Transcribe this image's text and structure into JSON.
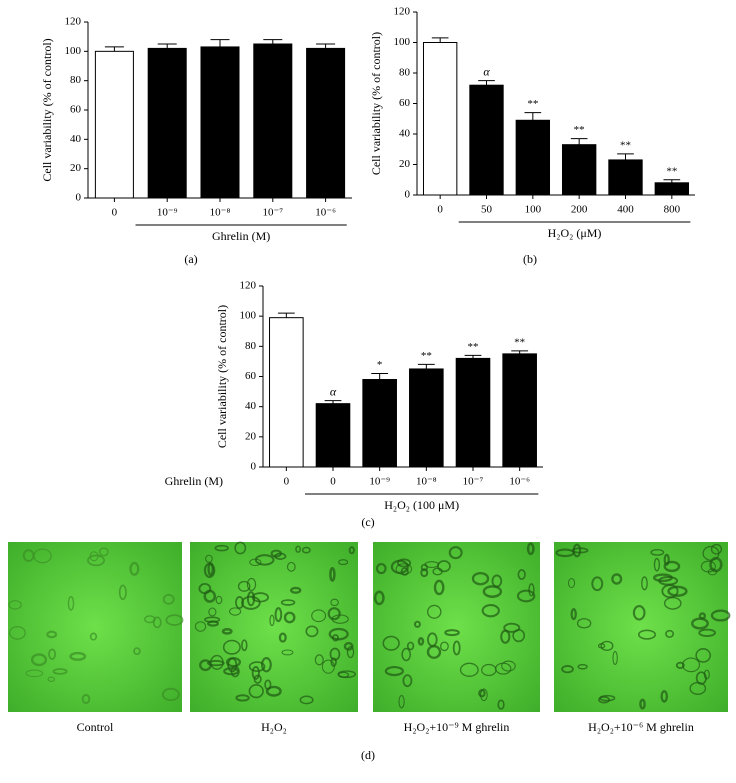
{
  "chart_data": [
    {
      "type": "bar",
      "caption": "(a)",
      "ylabel": "Cell variability (% of control)",
      "group_label": "Ghrelin (M)",
      "categories": [
        "0",
        "10⁻⁹",
        "10⁻⁸",
        "10⁻⁷",
        "10⁻⁶"
      ],
      "values": [
        100,
        102,
        103,
        105,
        102
      ],
      "errors": [
        3,
        3,
        5,
        3,
        3
      ],
      "annotations": [
        null,
        null,
        null,
        null,
        null
      ],
      "colors": [
        "#ffffff",
        "#000000",
        "#000000",
        "#000000",
        "#000000"
      ],
      "ylim": [
        0,
        120
      ],
      "yticks": [
        0,
        20,
        40,
        60,
        80,
        100,
        120
      ]
    },
    {
      "type": "bar",
      "caption": "(b)",
      "ylabel": "Cell variability (% of control)",
      "group_label": "H₂O₂ (μM)",
      "categories": [
        "0",
        "50",
        "100",
        "200",
        "400",
        "800"
      ],
      "values": [
        100,
        72,
        49,
        33,
        23,
        8
      ],
      "errors": [
        3,
        3,
        5,
        4,
        4,
        2
      ],
      "annotations": [
        null,
        "α",
        "**",
        "**",
        "**",
        "**"
      ],
      "colors": [
        "#ffffff",
        "#000000",
        "#000000",
        "#000000",
        "#000000",
        "#000000"
      ],
      "ylim": [
        0,
        120
      ],
      "yticks": [
        0,
        20,
        40,
        60,
        80,
        100,
        120
      ]
    },
    {
      "type": "bar",
      "caption": "(c)",
      "ylabel": "Cell variability (% of control)",
      "group_label": "H₂O₂ (100 μM)",
      "row_label": "Ghrelin (M)",
      "categories": [
        "0",
        "0",
        "10⁻⁹",
        "10⁻⁸",
        "10⁻⁷",
        "10⁻⁶"
      ],
      "values": [
        99,
        42,
        58,
        65,
        72,
        75
      ],
      "errors": [
        3,
        2,
        4,
        3,
        2,
        2
      ],
      "annotations": [
        null,
        "α",
        "*",
        "**",
        "**",
        "**"
      ],
      "colors": [
        "#ffffff",
        "#000000",
        "#000000",
        "#000000",
        "#000000",
        "#000000"
      ],
      "ylim": [
        0,
        120
      ],
      "yticks": [
        0,
        20,
        40,
        60,
        80,
        100,
        120
      ]
    }
  ],
  "images": {
    "caption": "(d)",
    "panels": [
      {
        "caption": "Control"
      },
      {
        "caption": "H₂O₂"
      },
      {
        "caption": "H₂O₂+10⁻⁹ M ghrelin"
      },
      {
        "caption": "H₂O₂+10⁻⁶ M ghrelin"
      }
    ]
  }
}
